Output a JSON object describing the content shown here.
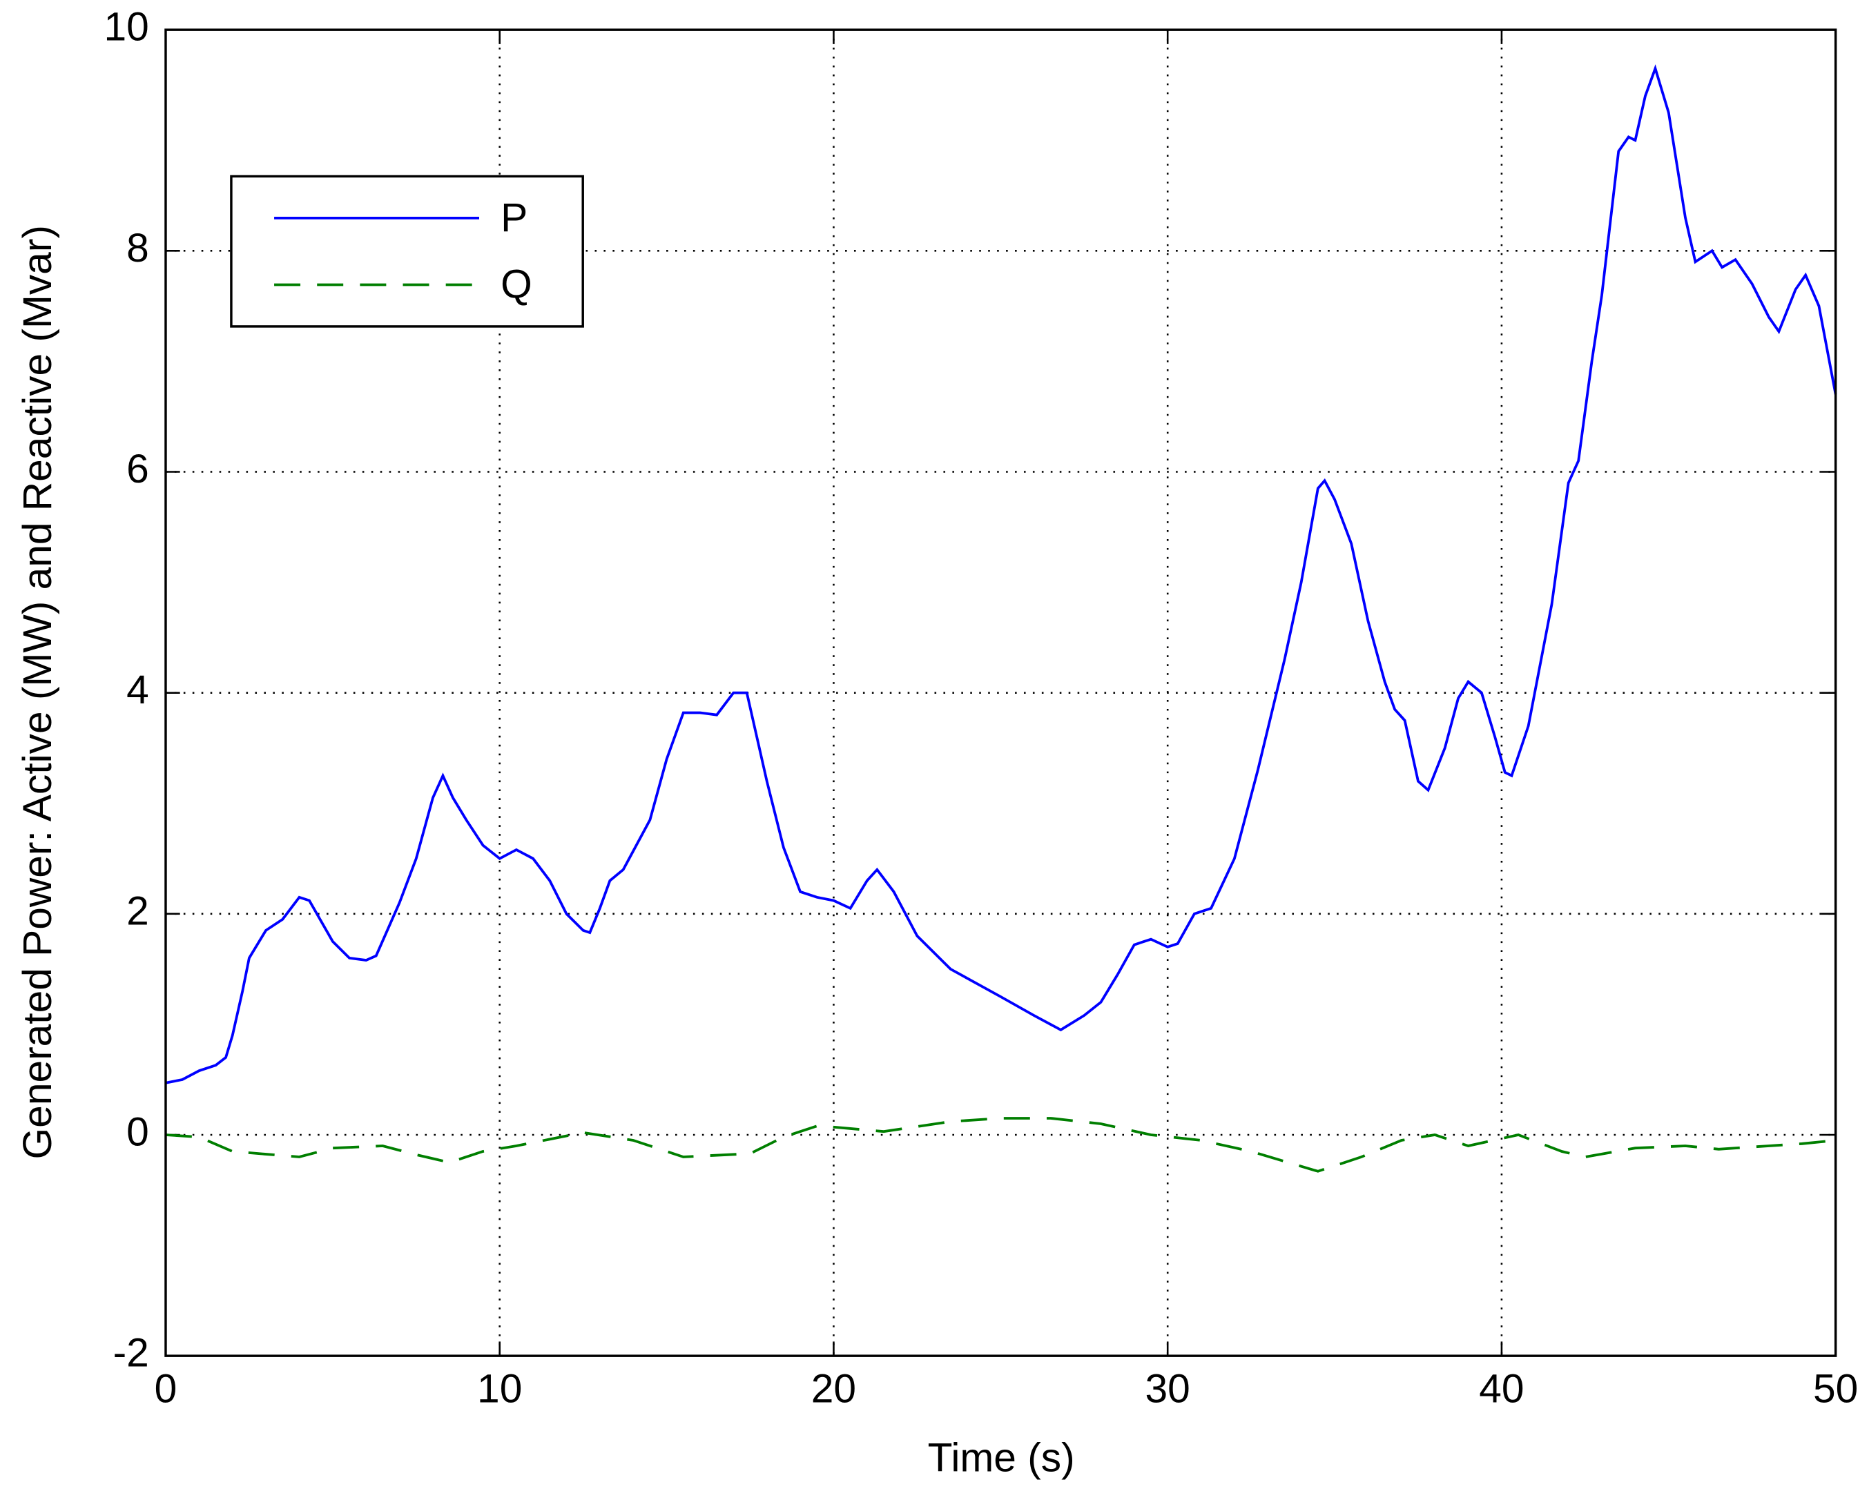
{
  "chart_data": {
    "type": "line",
    "xlabel": "Time (s)",
    "ylabel": "Generated Power: Active (MW) and Reactive (Mvar)",
    "xlim": [
      0,
      50
    ],
    "xticks": [
      0,
      10,
      20,
      30,
      40,
      50
    ],
    "ylim": [
      -2,
      10
    ],
    "yticks": [
      -2,
      0,
      2,
      4,
      6,
      8,
      10
    ],
    "grid": true,
    "legend": "upper left",
    "series": [
      {
        "name": "P",
        "color": "#0000ff",
        "dash": "solid",
        "x": [
          0,
          0.5,
          1,
          1.5,
          1.8,
          2,
          2.3,
          2.5,
          3,
          3.5,
          4,
          4.3,
          5,
          5.5,
          6,
          6.3,
          7,
          7.5,
          8,
          8.3,
          8.6,
          9,
          9.5,
          10,
          10.5,
          11,
          11.5,
          12,
          12.5,
          12.7,
          13,
          13.3,
          13.7,
          14.5,
          15,
          15.5,
          16,
          16.5,
          17,
          17.4,
          18,
          18.5,
          19,
          19.5,
          20,
          20.5,
          21,
          21.3,
          21.8,
          22.5,
          23.5,
          25,
          26,
          26.8,
          27.5,
          28,
          28.5,
          29,
          29.5,
          30,
          30.3,
          30.8,
          31.3,
          32,
          32.7,
          33.5,
          34,
          34.5,
          34.7,
          35,
          35.5,
          36,
          36.5,
          36.8,
          37.1,
          37.5,
          37.8,
          38.3,
          38.7,
          39,
          39.4,
          39.8,
          40.1,
          40.3,
          40.8,
          41.5,
          42,
          42.3,
          42.7,
          43,
          43.5,
          43.8,
          44,
          44.3,
          44.6,
          45,
          45.5,
          45.8,
          46.3,
          46.6,
          47,
          47.5,
          48,
          48.3,
          48.8,
          49.1,
          49.5,
          50
        ],
        "values": [
          0.47,
          0.5,
          0.58,
          0.63,
          0.7,
          0.9,
          1.3,
          1.6,
          1.85,
          1.95,
          2.15,
          2.12,
          1.75,
          1.6,
          1.58,
          1.62,
          2.1,
          2.5,
          3.05,
          3.25,
          3.05,
          2.85,
          2.62,
          2.5,
          2.58,
          2.5,
          2.3,
          2.0,
          1.85,
          1.83,
          2.05,
          2.3,
          2.4,
          2.85,
          3.4,
          3.82,
          3.82,
          3.8,
          4.0,
          4.0,
          3.2,
          2.6,
          2.2,
          2.15,
          2.12,
          2.05,
          2.3,
          2.4,
          2.2,
          1.8,
          1.5,
          1.25,
          1.08,
          0.95,
          1.08,
          1.2,
          1.45,
          1.72,
          1.77,
          1.7,
          1.73,
          2.0,
          2.05,
          2.5,
          3.3,
          4.3,
          5.0,
          5.85,
          5.92,
          5.75,
          5.35,
          4.65,
          4.1,
          3.85,
          3.75,
          3.2,
          3.12,
          3.5,
          3.95,
          4.1,
          4.0,
          3.6,
          3.28,
          3.25,
          3.7,
          4.8,
          5.9,
          6.1,
          7.0,
          7.6,
          8.9,
          9.03,
          9.0,
          9.4,
          9.65,
          9.25,
          8.3,
          7.9,
          8.0,
          7.85,
          7.92,
          7.7,
          7.4,
          7.27,
          7.65,
          7.78,
          7.5,
          6.7
        ]
      },
      {
        "name": "Q",
        "color": "#007f00",
        "dash": "dashed",
        "x": [
          0,
          1,
          2,
          4,
          5,
          6.5,
          7.5,
          8.5,
          9.5,
          10.5,
          11.5,
          12.5,
          14,
          15.5,
          17.5,
          18.5,
          19.5,
          20,
          21.5,
          23.5,
          25,
          26.5,
          28,
          29.5,
          31,
          32.5,
          34.5,
          35.8,
          37,
          38,
          39,
          40.5,
          41.8,
          42.5,
          44,
          45.5,
          46.5,
          48,
          49,
          50
        ],
        "values": [
          0,
          -0.02,
          -0.15,
          -0.2,
          -0.12,
          -0.1,
          -0.18,
          -0.25,
          -0.15,
          -0.1,
          -0.04,
          0.02,
          -0.05,
          -0.2,
          -0.17,
          -0.02,
          0.08,
          0.07,
          0.03,
          0.12,
          0.15,
          0.15,
          0.1,
          0,
          -0.05,
          -0.15,
          -0.33,
          -0.2,
          -0.05,
          0,
          -0.1,
          0,
          -0.15,
          -0.2,
          -0.12,
          -0.1,
          -0.13,
          -0.1,
          -0.08,
          -0.05
        ]
      }
    ]
  }
}
